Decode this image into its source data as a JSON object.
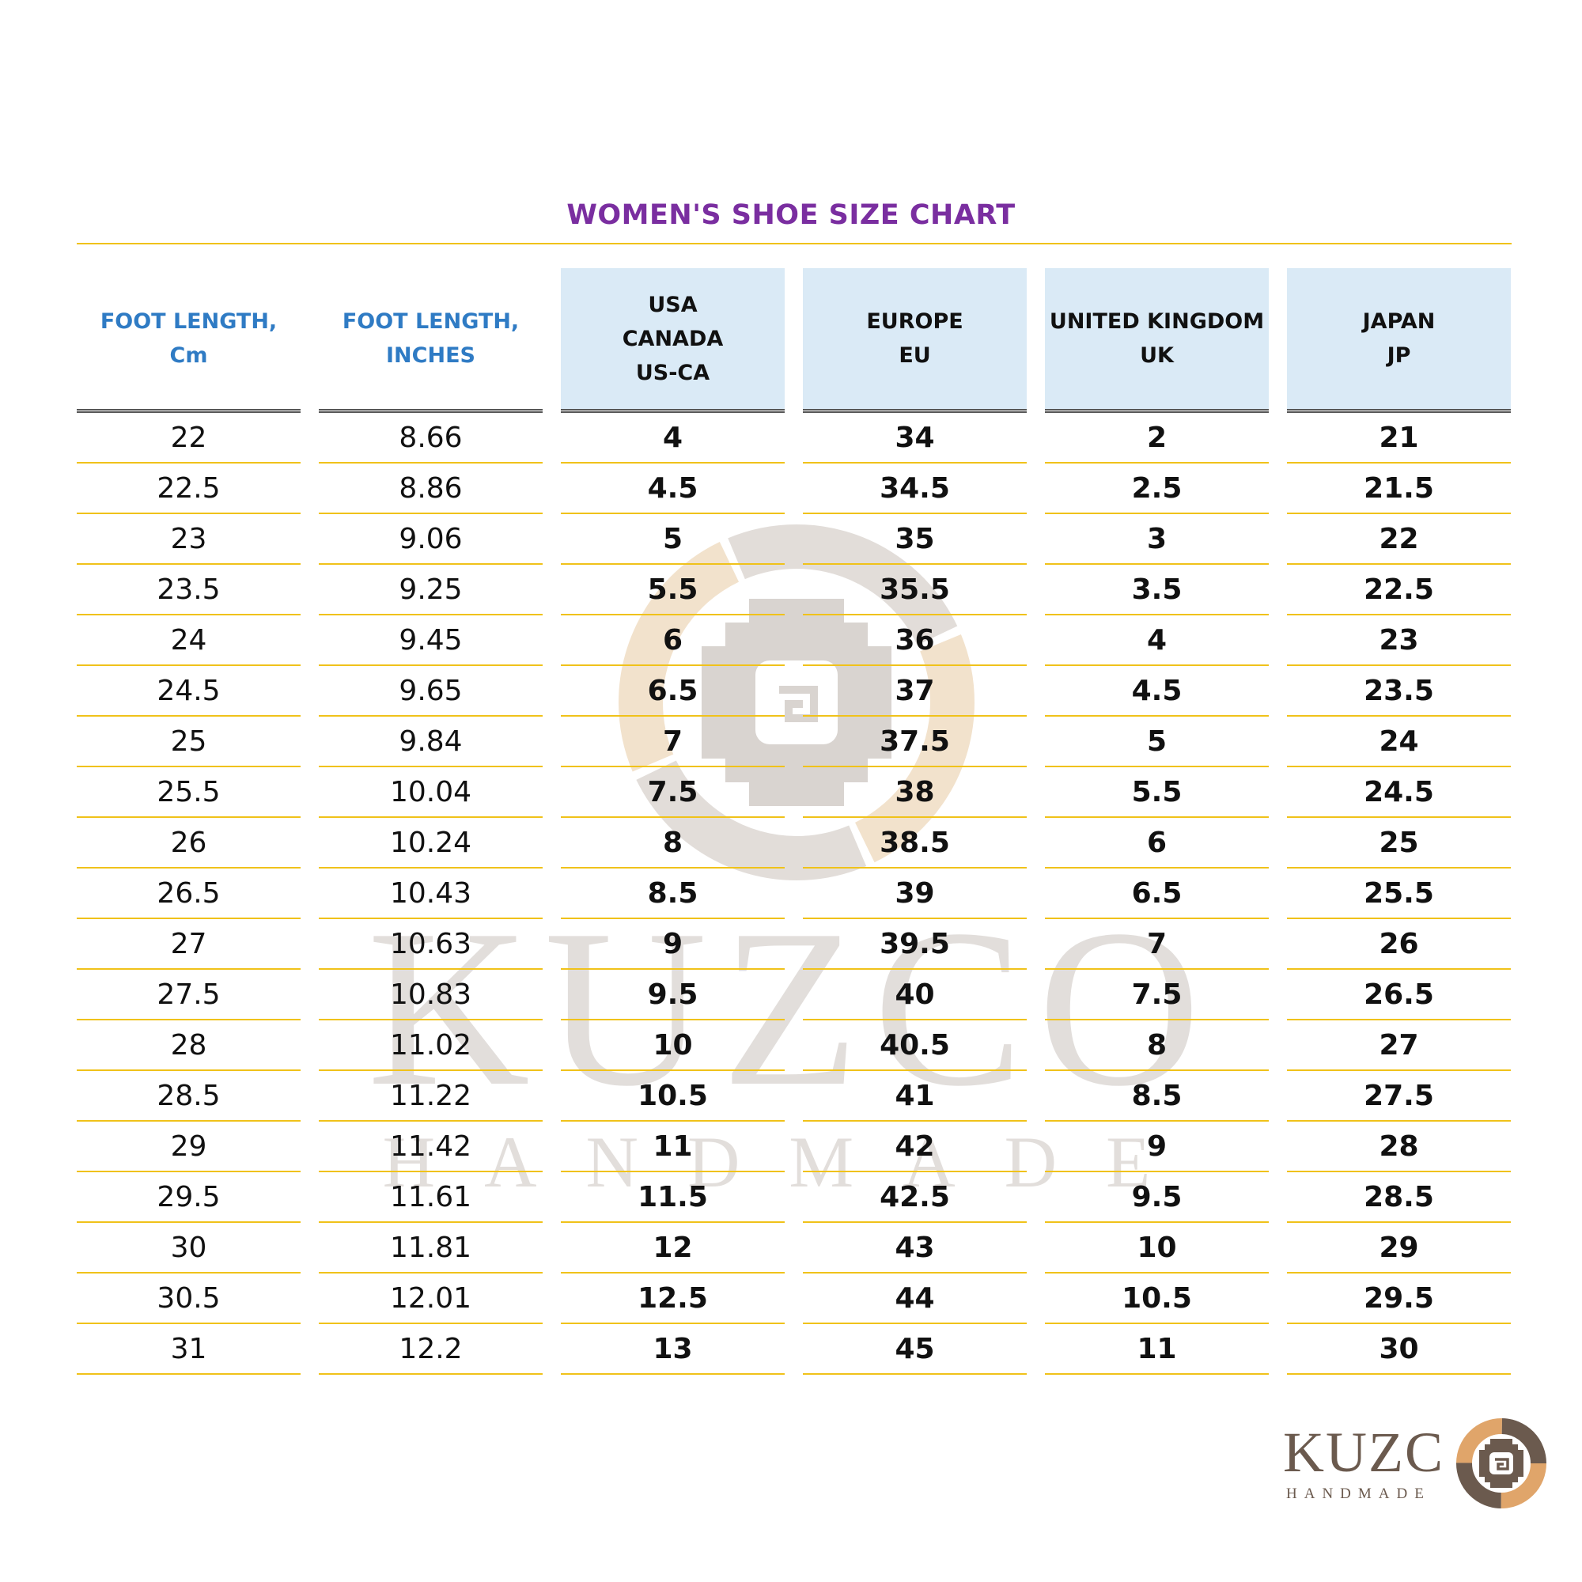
{
  "title": "WOMEN'S SHOE SIZE CHART",
  "colors": {
    "title": "#7a2ea0",
    "plain_header": "#2f7bc4",
    "shaded_header_bg": "#daeaf6",
    "row_rule": "#f0c21a",
    "watermark": "#d9d4d0",
    "watermark_accent": "#f2e2cc",
    "logo_brown": "#6b5a4e",
    "logo_tan": "#e0a56a"
  },
  "headers": [
    {
      "lines": [
        "FOOT LENGTH,",
        "Cm"
      ],
      "style": "plain"
    },
    {
      "lines": [
        "FOOT LENGTH,",
        "INCHES"
      ],
      "style": "plain"
    },
    {
      "lines": [
        "USA",
        "CANADA",
        "US-CA"
      ],
      "style": "shaded"
    },
    {
      "lines": [
        "EUROPE",
        "EU"
      ],
      "style": "shaded"
    },
    {
      "lines": [
        "UNITED KINGDOM",
        "UK"
      ],
      "style": "shaded"
    },
    {
      "lines": [
        "JAPAN",
        "JP"
      ],
      "style": "shaded"
    }
  ],
  "rows": [
    [
      "22",
      "8.66",
      "4",
      "34",
      "2",
      "21"
    ],
    [
      "22.5",
      "8.86",
      "4.5",
      "34.5",
      "2.5",
      "21.5"
    ],
    [
      "23",
      "9.06",
      "5",
      "35",
      "3",
      "22"
    ],
    [
      "23.5",
      "9.25",
      "5.5",
      "35.5",
      "3.5",
      "22.5"
    ],
    [
      "24",
      "9.45",
      "6",
      "36",
      "4",
      "23"
    ],
    [
      "24.5",
      "9.65",
      "6.5",
      "37",
      "4.5",
      "23.5"
    ],
    [
      "25",
      "9.84",
      "7",
      "37.5",
      "5",
      "24"
    ],
    [
      "25.5",
      "10.04",
      "7.5",
      "38",
      "5.5",
      "24.5"
    ],
    [
      "26",
      "10.24",
      "8",
      "38.5",
      "6",
      "25"
    ],
    [
      "26.5",
      "10.43",
      "8.5",
      "39",
      "6.5",
      "25.5"
    ],
    [
      "27",
      "10.63",
      "9",
      "39.5",
      "7",
      "26"
    ],
    [
      "27.5",
      "10.83",
      "9.5",
      "40",
      "7.5",
      "26.5"
    ],
    [
      "28",
      "11.02",
      "10",
      "40.5",
      "8",
      "27"
    ],
    [
      "28.5",
      "11.22",
      "10.5",
      "41",
      "8.5",
      "27.5"
    ],
    [
      "29",
      "11.42",
      "11",
      "42",
      "9",
      "28"
    ],
    [
      "29.5",
      "11.61",
      "11.5",
      "42.5",
      "9.5",
      "28.5"
    ],
    [
      "30",
      "11.81",
      "12",
      "43",
      "10",
      "29"
    ],
    [
      "30.5",
      "12.01",
      "12.5",
      "44",
      "10.5",
      "29.5"
    ],
    [
      "31",
      "12.2",
      "13",
      "45",
      "11",
      "30"
    ]
  ],
  "watermark": {
    "text": "KUZCO",
    "subtext": "HANDMADE"
  },
  "logo": {
    "text": "KUZC",
    "subtext": "HANDMADE"
  }
}
